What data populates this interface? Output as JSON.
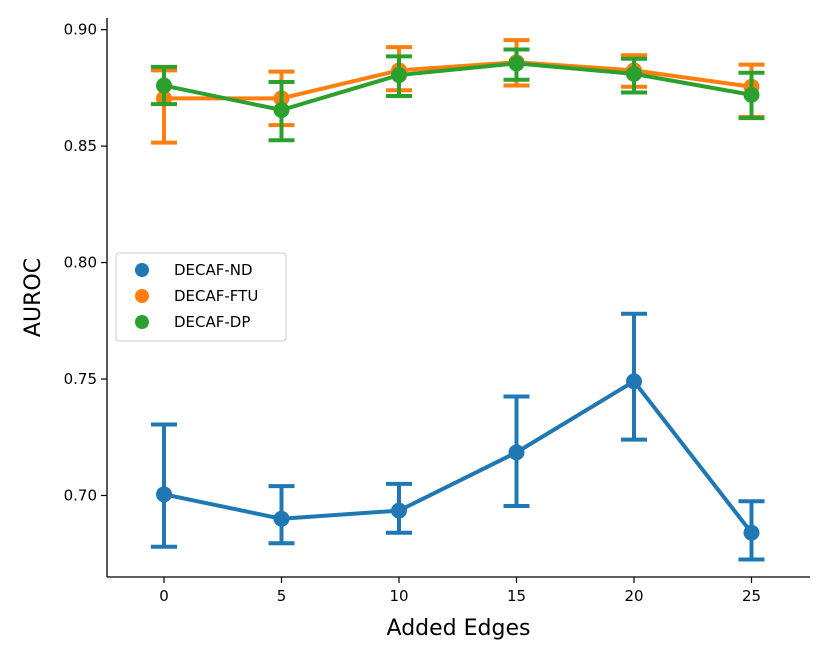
{
  "chart_data": {
    "type": "line",
    "title": "",
    "xlabel": "Added Edges",
    "ylabel": "AUROC",
    "categories": [
      "0",
      "5",
      "10",
      "15",
      "20",
      "25"
    ],
    "ylim": [
      0.665,
      0.905
    ],
    "yticks": [
      "0.70",
      "0.75",
      "0.80",
      "0.85",
      "0.90"
    ],
    "grid": false,
    "legend_position": "center-left",
    "error_bars": true,
    "series": [
      {
        "name": "DECAF-ND",
        "color": "#1f77b4",
        "values": [
          0.7005,
          0.69,
          0.6935,
          0.7185,
          0.749,
          0.684
        ],
        "err_low": [
          0.678,
          0.6795,
          0.684,
          0.6955,
          0.724,
          0.6725
        ],
        "err_high": [
          0.7305,
          0.704,
          0.705,
          0.7425,
          0.778,
          0.6975
        ]
      },
      {
        "name": "DECAF-FTU",
        "color": "#ff7f0e",
        "values": [
          0.8705,
          0.8705,
          0.8825,
          0.886,
          0.8825,
          0.8755
        ],
        "err_low": [
          0.8515,
          0.859,
          0.874,
          0.876,
          0.8755,
          0.8625
        ],
        "err_high": [
          0.8825,
          0.882,
          0.8925,
          0.8955,
          0.889,
          0.885
        ]
      },
      {
        "name": "DECAF-DP",
        "color": "#2ca02c",
        "values": [
          0.876,
          0.8655,
          0.8805,
          0.8855,
          0.881,
          0.872
        ],
        "err_low": [
          0.868,
          0.8525,
          0.8715,
          0.8785,
          0.873,
          0.862
        ],
        "err_high": [
          0.884,
          0.8775,
          0.8885,
          0.8915,
          0.8875,
          0.8815
        ]
      }
    ]
  }
}
